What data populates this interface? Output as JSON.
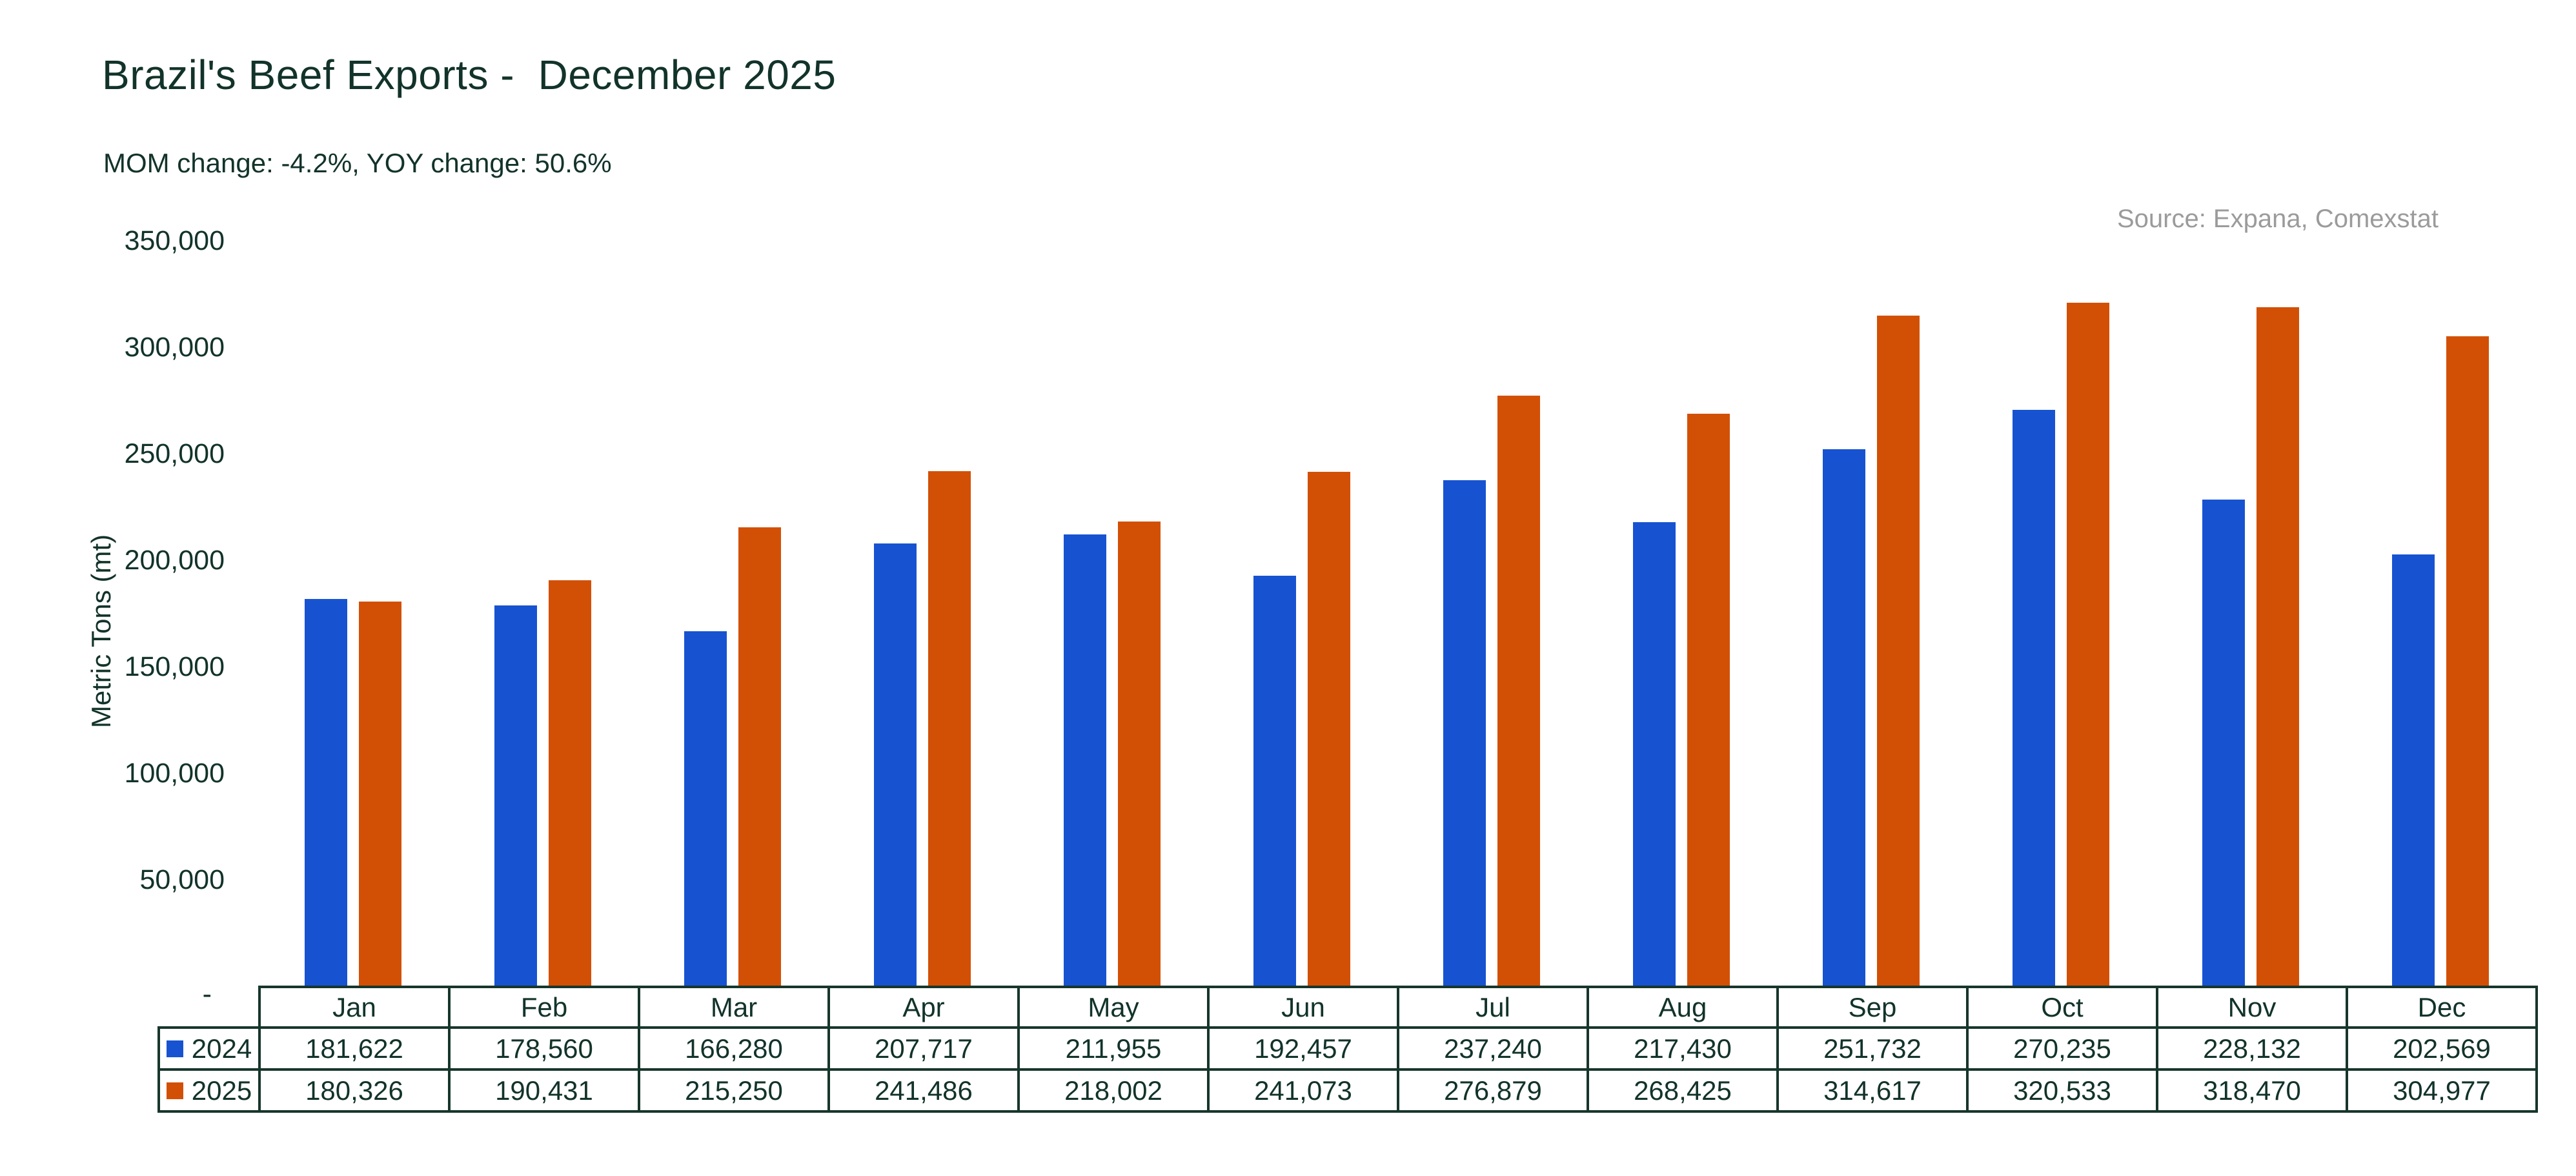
{
  "header": {
    "title": "Brazil's Beef Exports -  December 2025",
    "subtitle": "MOM change: -4.2%, YOY change: 50.6%",
    "source": "Source: Expana, Comexstat"
  },
  "y_axis": {
    "title": "Metric Tons (mt)",
    "tick_labels": [
      "350,000",
      "300,000",
      "250,000",
      "200,000",
      "150,000",
      "100,000",
      "50,000"
    ],
    "zero_label": "-"
  },
  "chart_data": {
    "type": "bar",
    "title": "Brazil's Beef Exports - December 2025",
    "categories": [
      "Jan",
      "Feb",
      "Mar",
      "Apr",
      "May",
      "Jun",
      "Jul",
      "Aug",
      "Sep",
      "Oct",
      "Nov",
      "Dec"
    ],
    "series": [
      {
        "name": "2024",
        "color": "#1753D1",
        "values": [
          181622,
          178560,
          166280,
          207717,
          211955,
          192457,
          237240,
          217430,
          251732,
          270235,
          228132,
          202569
        ]
      },
      {
        "name": "2025",
        "color": "#D25005",
        "values": [
          180326,
          190431,
          215250,
          241486,
          218002,
          241073,
          276879,
          268425,
          314617,
          320533,
          318470,
          304977
        ]
      }
    ],
    "xlabel": "",
    "ylabel": "Metric Tons (mt)",
    "ylim": [
      0,
      350000
    ],
    "ytick_step": 50000,
    "grid": false,
    "legend_position": "table-left"
  },
  "colors": {
    "text": "#12332A",
    "table_border": "#17362C",
    "muted": "#9B9B9B",
    "background": "#FFFFFF"
  }
}
